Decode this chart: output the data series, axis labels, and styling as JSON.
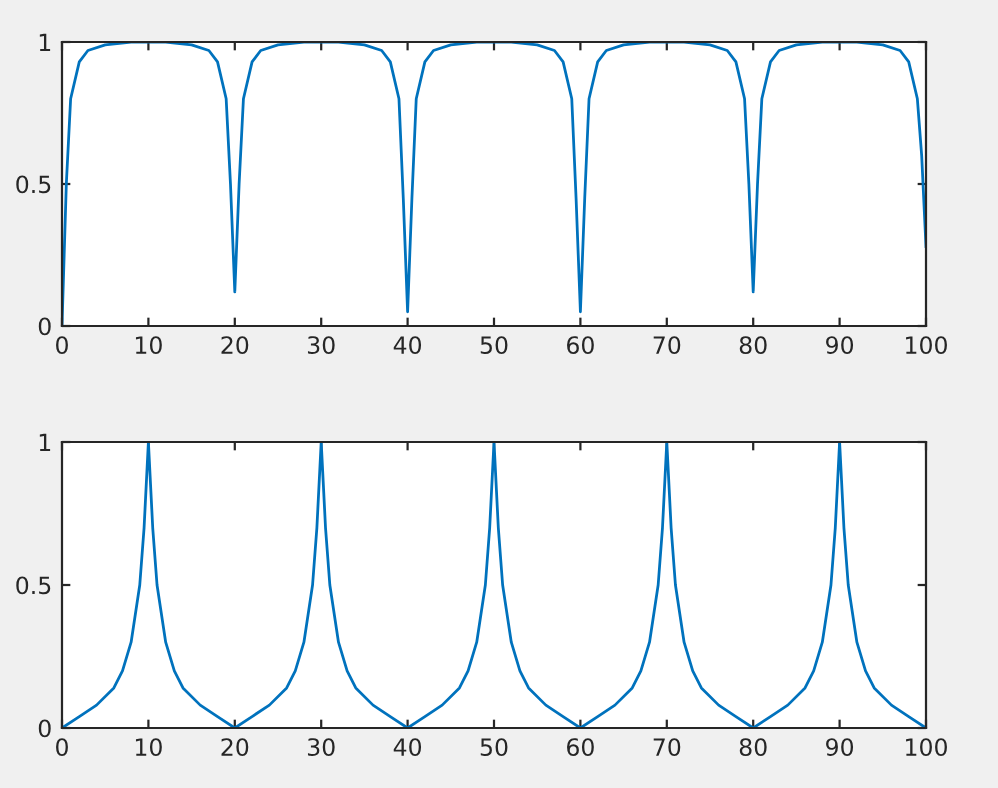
{
  "chart_data": [
    {
      "type": "line",
      "xlim": [
        0,
        100
      ],
      "ylim": [
        0,
        1
      ],
      "xticks": [
        0,
        10,
        20,
        30,
        40,
        50,
        60,
        70,
        80,
        90,
        100
      ],
      "yticks": [
        0,
        0.5,
        1
      ],
      "series": [
        {
          "color": "#0072bd",
          "x": [
            0,
            0.5,
            1,
            2,
            3,
            5,
            8,
            12,
            15,
            17,
            18,
            19,
            19.5,
            20,
            20.5,
            21,
            22,
            23,
            25,
            28,
            32,
            35,
            37,
            38,
            39,
            39.5,
            40,
            40.5,
            41,
            42,
            43,
            45,
            48,
            52,
            55,
            57,
            58,
            59,
            59.5,
            60,
            60.5,
            61,
            62,
            63,
            65,
            68,
            72,
            75,
            77,
            78,
            79,
            79.5,
            80,
            80.5,
            81,
            82,
            83,
            85,
            88,
            92,
            95,
            97,
            98,
            99,
            99.5,
            100
          ],
          "values": [
            0,
            0.5,
            0.8,
            0.93,
            0.97,
            0.99,
            1,
            1,
            0.99,
            0.97,
            0.93,
            0.8,
            0.5,
            0.12,
            0.5,
            0.8,
            0.93,
            0.97,
            0.99,
            1,
            1,
            0.99,
            0.97,
            0.93,
            0.8,
            0.45,
            0.05,
            0.45,
            0.8,
            0.93,
            0.97,
            0.99,
            1,
            1,
            0.99,
            0.97,
            0.93,
            0.8,
            0.45,
            0.05,
            0.45,
            0.8,
            0.93,
            0.97,
            0.99,
            1,
            1,
            0.99,
            0.97,
            0.93,
            0.8,
            0.5,
            0.12,
            0.5,
            0.8,
            0.93,
            0.97,
            0.99,
            1,
            1,
            0.99,
            0.97,
            0.93,
            0.8,
            0.6,
            0.28
          ]
        }
      ]
    },
    {
      "type": "line",
      "xlim": [
        0,
        100
      ],
      "ylim": [
        0,
        1
      ],
      "xticks": [
        0,
        10,
        20,
        30,
        40,
        50,
        60,
        70,
        80,
        90,
        100
      ],
      "yticks": [
        0,
        0.5,
        1
      ],
      "series": [
        {
          "color": "#0072bd",
          "x": [
            0,
            2,
            4,
            6,
            7,
            8,
            9,
            9.5,
            10,
            10.5,
            11,
            12,
            13,
            14,
            16,
            18,
            20,
            22,
            24,
            26,
            27,
            28,
            29,
            29.5,
            30,
            30.5,
            31,
            32,
            33,
            34,
            36,
            38,
            40,
            42,
            44,
            46,
            47,
            48,
            49,
            49.5,
            50,
            50.5,
            51,
            52,
            53,
            54,
            56,
            58,
            60,
            62,
            64,
            66,
            67,
            68,
            69,
            69.5,
            70,
            70.5,
            71,
            72,
            73,
            74,
            76,
            78,
            80,
            82,
            84,
            86,
            87,
            88,
            89,
            89.5,
            90,
            90.5,
            91,
            92,
            93,
            94,
            96,
            98,
            100
          ],
          "values": [
            0,
            0.04,
            0.08,
            0.14,
            0.2,
            0.3,
            0.5,
            0.7,
            1,
            0.7,
            0.5,
            0.3,
            0.2,
            0.14,
            0.08,
            0.04,
            0,
            0.04,
            0.08,
            0.14,
            0.2,
            0.3,
            0.5,
            0.7,
            1,
            0.7,
            0.5,
            0.3,
            0.2,
            0.14,
            0.08,
            0.04,
            0,
            0.04,
            0.08,
            0.14,
            0.2,
            0.3,
            0.5,
            0.7,
            1,
            0.7,
            0.5,
            0.3,
            0.2,
            0.14,
            0.08,
            0.04,
            0,
            0.04,
            0.08,
            0.14,
            0.2,
            0.3,
            0.5,
            0.7,
            1,
            0.7,
            0.5,
            0.3,
            0.2,
            0.14,
            0.08,
            0.04,
            0,
            0.04,
            0.08,
            0.14,
            0.2,
            0.3,
            0.5,
            0.7,
            1,
            0.7,
            0.5,
            0.3,
            0.2,
            0.14,
            0.08,
            0.04,
            0
          ]
        }
      ]
    }
  ]
}
